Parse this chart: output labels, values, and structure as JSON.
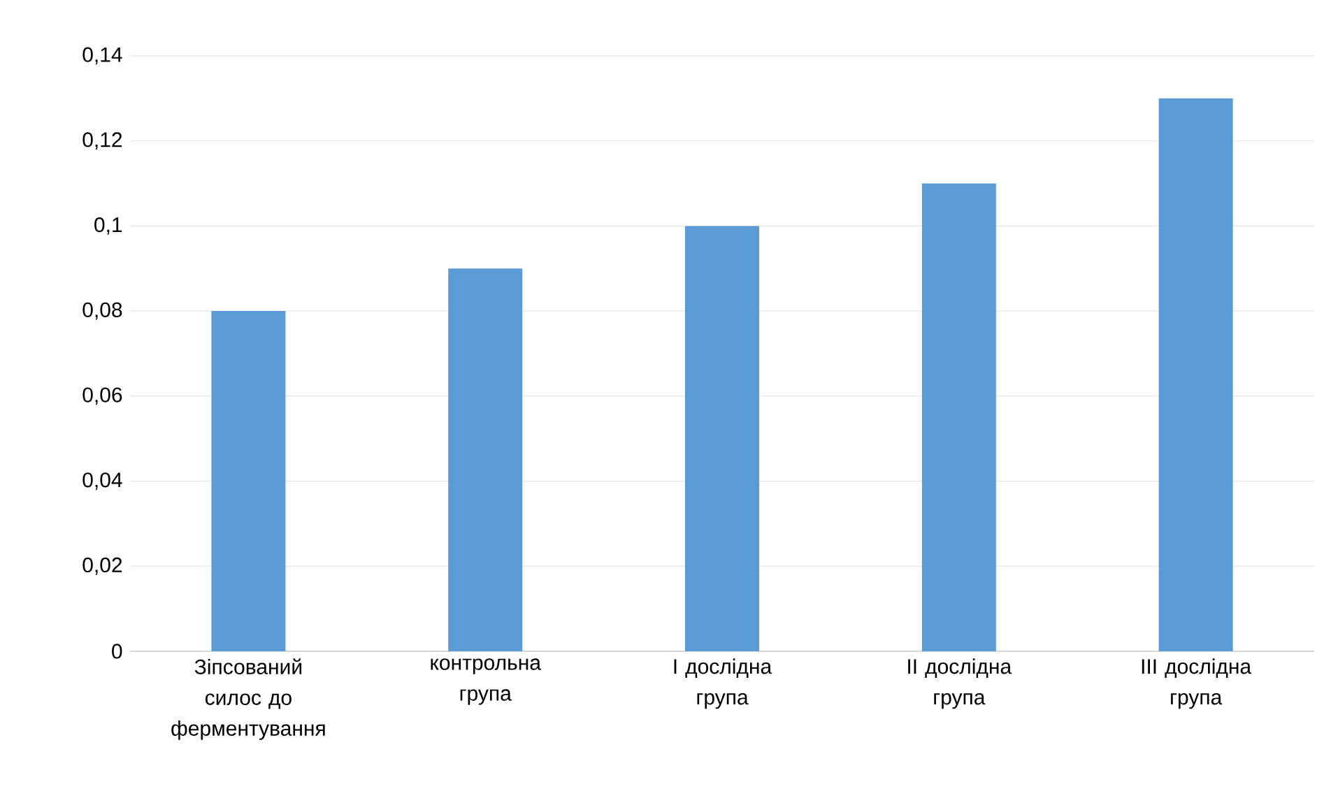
{
  "chart_data": {
    "type": "bar",
    "categories": [
      "Зіпсований силос до ферментування",
      "контрольна група",
      "I  дослідна група",
      "II  дослідна група",
      "III дослідна група"
    ],
    "values": [
      0.08,
      0.09,
      0.1,
      0.11,
      0.13
    ],
    "color": "#5b9bd5",
    "ylim": [
      0,
      0.14
    ],
    "yticks": [
      0,
      {
        "value": 0.02,
        "label": "0,02"
      },
      {
        "value": 0.04,
        "label": "0,04"
      },
      {
        "value": 0.06,
        "label": "0,06"
      },
      {
        "value": 0.08,
        "label": "0,08"
      },
      {
        "value": 0.1,
        "label": "0,1"
      },
      {
        "value": 0.12,
        "label": "0,12"
      },
      {
        "value": 0.14,
        "label": "0,14"
      }
    ],
    "grid": "y"
  }
}
